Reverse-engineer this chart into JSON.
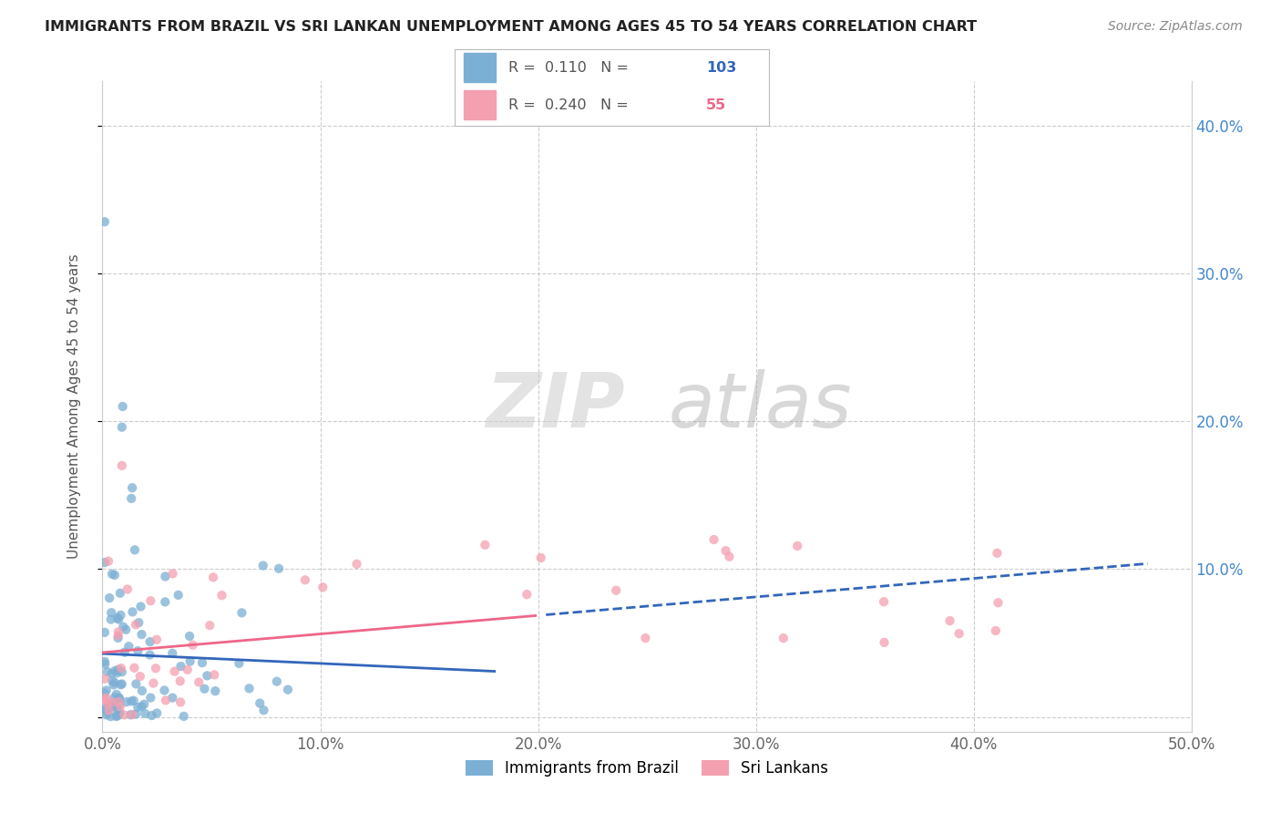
{
  "title": "IMMIGRANTS FROM BRAZIL VS SRI LANKAN UNEMPLOYMENT AMONG AGES 45 TO 54 YEARS CORRELATION CHART",
  "source": "Source: ZipAtlas.com",
  "ylabel": "Unemployment Among Ages 45 to 54 years",
  "xlim": [
    0.0,
    0.5
  ],
  "ylim": [
    -0.01,
    0.43
  ],
  "xticks": [
    0.0,
    0.1,
    0.2,
    0.3,
    0.4,
    0.5
  ],
  "yticks": [
    0.0,
    0.1,
    0.2,
    0.3,
    0.4
  ],
  "ytick_labels": [
    "",
    "10.0%",
    "20.0%",
    "30.0%",
    "40.0%"
  ],
  "xtick_labels": [
    "0.0%",
    "10.0%",
    "20.0%",
    "30.0%",
    "40.0%",
    "50.0%"
  ],
  "brazil_color": "#7BAFD4",
  "srilanka_color": "#F4A0B0",
  "brazil_line_color": "#3366BB",
  "srilanka_line_color": "#EE6688",
  "brazil_R": 0.11,
  "brazil_N": 103,
  "srilanka_R": 0.24,
  "srilanka_N": 55,
  "legend_label_brazil": "Immigrants from Brazil",
  "legend_label_srilanka": "Sri Lankans",
  "watermark_zip": "ZIP",
  "watermark_atlas": "atlas"
}
